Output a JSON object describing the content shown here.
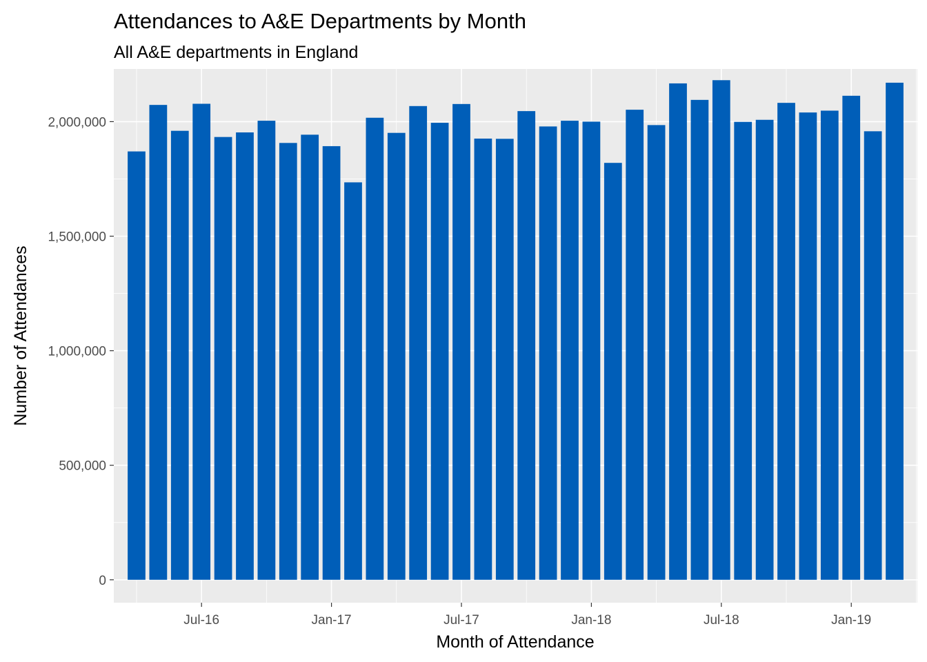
{
  "chart_data": {
    "type": "bar",
    "title": "Attendances to A&E Departments by Month",
    "subtitle": "All A&E departments in England",
    "xlabel": "Month of Attendance",
    "ylabel": "Number of Attendances",
    "bar_color": "#005EB8",
    "panel_color": "#EBEBEB",
    "grid": true,
    "legend": "none",
    "x_start": "2016-04",
    "x_ticks": [
      {
        "label": "Jul-16",
        "date": "2016-07"
      },
      {
        "label": "Jan-17",
        "date": "2017-01"
      },
      {
        "label": "Jul-17",
        "date": "2017-07"
      },
      {
        "label": "Jan-18",
        "date": "2018-01"
      },
      {
        "label": "Jul-18",
        "date": "2018-07"
      },
      {
        "label": "Jan-19",
        "date": "2019-01"
      }
    ],
    "ylim": [
      -100000,
      2230000
    ],
    "y_ticks": [
      {
        "label": "0",
        "value": 0
      },
      {
        "label": "500,000",
        "value": 500000
      },
      {
        "label": "1,000,000",
        "value": 1000000
      },
      {
        "label": "1,500,000",
        "value": 1500000
      },
      {
        "label": "2,000,000",
        "value": 2000000
      }
    ],
    "categories": [
      "2016-04",
      "2016-05",
      "2016-06",
      "2016-07",
      "2016-08",
      "2016-09",
      "2016-10",
      "2016-11",
      "2016-12",
      "2017-01",
      "2017-02",
      "2017-03",
      "2017-04",
      "2017-05",
      "2017-06",
      "2017-07",
      "2017-08",
      "2017-09",
      "2017-10",
      "2017-11",
      "2017-12",
      "2018-01",
      "2018-02",
      "2018-03",
      "2018-04",
      "2018-05",
      "2018-06",
      "2018-07",
      "2018-08",
      "2018-09",
      "2018-10",
      "2018-11",
      "2018-12",
      "2019-01",
      "2019-02",
      "2019-03"
    ],
    "values": [
      1870000,
      2073000,
      1960000,
      2078000,
      1933000,
      1953000,
      2004000,
      1907000,
      1943000,
      1893000,
      1735000,
      2017000,
      1951000,
      2068000,
      1995000,
      2077000,
      1926000,
      1925000,
      2046000,
      1979000,
      2004000,
      2000000,
      1820000,
      2052000,
      1985000,
      2167000,
      2095000,
      2181000,
      1999000,
      2008000,
      2082000,
      2040000,
      2048000,
      2113000,
      1958000,
      2170000
    ]
  }
}
